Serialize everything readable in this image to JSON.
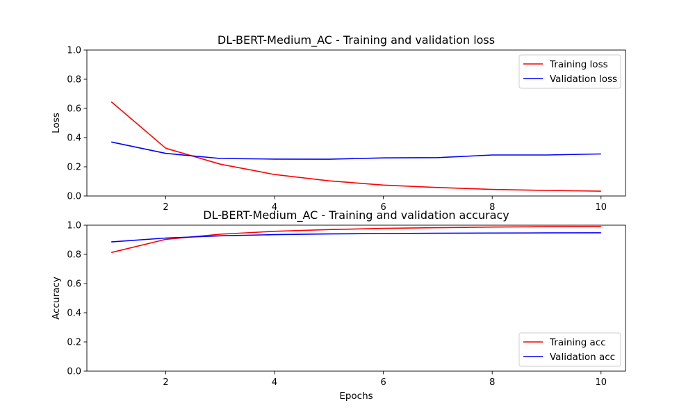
{
  "chart_data": [
    {
      "type": "line",
      "title": "DL-BERT-Medium_AC - Training and validation loss",
      "xlabel": "",
      "ylabel": "Loss",
      "xlim": [
        0.55,
        10.45
      ],
      "ylim": [
        0.0,
        1.0
      ],
      "xticks": [
        "2",
        "4",
        "6",
        "8",
        "10"
      ],
      "yticks": [
        "0.0",
        "0.2",
        "0.4",
        "0.6",
        "0.8",
        "1.0"
      ],
      "grid": false,
      "legend_position": "top-right",
      "x": [
        1,
        2,
        3,
        4,
        5,
        6,
        7,
        8,
        9,
        10
      ],
      "series": [
        {
          "name": "Training loss",
          "color": "#ff0000",
          "values": [
            0.645,
            0.327,
            0.218,
            0.147,
            0.104,
            0.075,
            0.058,
            0.045,
            0.038,
            0.033
          ]
        },
        {
          "name": "Validation loss",
          "color": "#0000ff",
          "values": [
            0.37,
            0.292,
            0.257,
            0.253,
            0.252,
            0.261,
            0.263,
            0.281,
            0.281,
            0.288
          ]
        }
      ]
    },
    {
      "type": "line",
      "title": "DL-BERT-Medium_AC - Training and validation accuracy",
      "xlabel": "Epochs",
      "ylabel": "Accuracy",
      "xlim": [
        0.55,
        10.45
      ],
      "ylim": [
        0.0,
        1.0
      ],
      "xticks": [
        "2",
        "4",
        "6",
        "8",
        "10"
      ],
      "yticks": [
        "0.0",
        "0.2",
        "0.4",
        "0.6",
        "0.8",
        "1.0"
      ],
      "grid": false,
      "legend_position": "bottom-right",
      "x": [
        1,
        2,
        3,
        4,
        5,
        6,
        7,
        8,
        9,
        10
      ],
      "series": [
        {
          "name": "Training acc",
          "color": "#ff0000",
          "values": [
            0.813,
            0.903,
            0.938,
            0.958,
            0.97,
            0.978,
            0.983,
            0.987,
            0.99,
            0.991
          ]
        },
        {
          "name": "Validation acc",
          "color": "#0000ff",
          "values": [
            0.885,
            0.912,
            0.927,
            0.935,
            0.94,
            0.943,
            0.945,
            0.946,
            0.947,
            0.948
          ]
        }
      ]
    }
  ]
}
